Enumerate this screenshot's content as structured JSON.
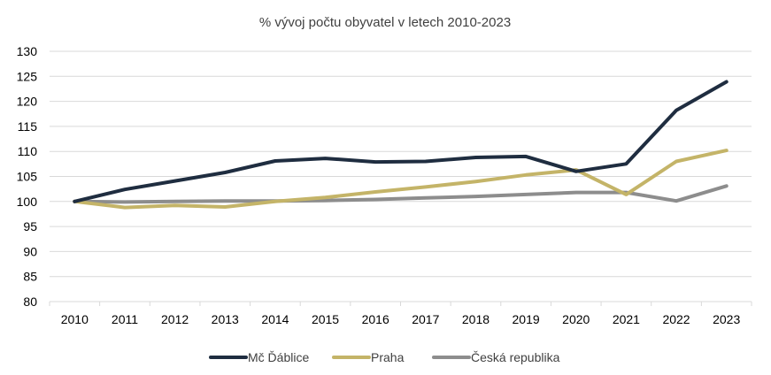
{
  "chart_data": {
    "type": "line",
    "title": "% vývoj počtu obyvatel v letech 2010-2023",
    "xlabel": "",
    "ylabel": "",
    "x": [
      "2010",
      "2011",
      "2012",
      "2013",
      "2014",
      "2015",
      "2016",
      "2017",
      "2018",
      "2019",
      "2020",
      "2021",
      "2022",
      "2023"
    ],
    "ylim": [
      80,
      130
    ],
    "yticks": [
      "80",
      "85",
      "90",
      "95",
      "100",
      "105",
      "110",
      "115",
      "120",
      "125",
      "130"
    ],
    "grid": true,
    "legend_position": "bottom",
    "series": [
      {
        "name": "Mč Ďáblice",
        "color": "#1f2d40",
        "values": [
          100,
          102.4,
          104.1,
          105.8,
          108.1,
          108.6,
          107.9,
          108.0,
          108.8,
          109.0,
          106.0,
          107.5,
          118.2,
          123.9
        ]
      },
      {
        "name": "Praha",
        "color": "#c4b468",
        "values": [
          100,
          98.8,
          99.2,
          98.9,
          100.0,
          100.8,
          101.9,
          102.9,
          104.0,
          105.3,
          106.3,
          101.4,
          108.0,
          110.2
        ]
      },
      {
        "name": "Česká republika",
        "color": "#8d8d8d",
        "values": [
          100,
          99.9,
          100.0,
          100.1,
          100.1,
          100.2,
          100.4,
          100.7,
          101.0,
          101.4,
          101.8,
          101.8,
          100.1,
          103.1
        ]
      }
    ]
  }
}
